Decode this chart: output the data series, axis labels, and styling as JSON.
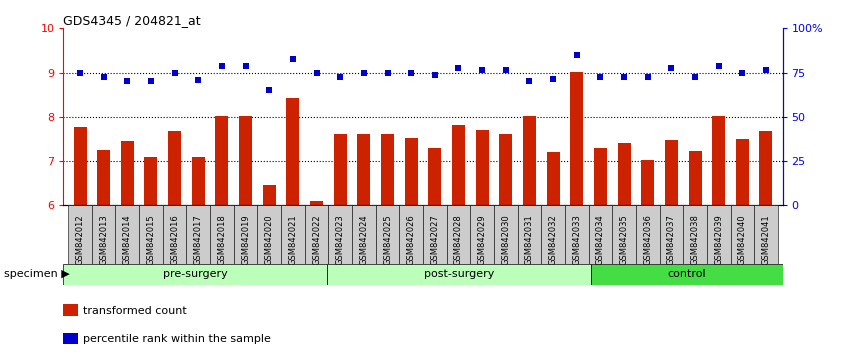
{
  "title": "GDS4345 / 204821_at",
  "categories": [
    "GSM842012",
    "GSM842013",
    "GSM842014",
    "GSM842015",
    "GSM842016",
    "GSM842017",
    "GSM842018",
    "GSM842019",
    "GSM842020",
    "GSM842021",
    "GSM842022",
    "GSM842023",
    "GSM842024",
    "GSM842025",
    "GSM842026",
    "GSM842027",
    "GSM842028",
    "GSM842029",
    "GSM842030",
    "GSM842031",
    "GSM842032",
    "GSM842033",
    "GSM842034",
    "GSM842035",
    "GSM842036",
    "GSM842037",
    "GSM842038",
    "GSM842039",
    "GSM842040",
    "GSM842041"
  ],
  "bar_values": [
    7.78,
    7.25,
    7.45,
    7.1,
    7.68,
    7.1,
    8.02,
    8.02,
    6.47,
    8.42,
    6.1,
    7.62,
    7.62,
    7.62,
    7.52,
    7.3,
    7.82,
    7.7,
    7.62,
    8.02,
    7.2,
    9.02,
    7.3,
    7.4,
    7.02,
    7.48,
    7.22,
    8.02,
    7.5,
    7.68
  ],
  "scatter_values": [
    75.0,
    72.5,
    70.0,
    70.0,
    75.0,
    71.0,
    78.8,
    78.8,
    65.0,
    82.5,
    75.0,
    72.5,
    75.0,
    75.0,
    75.0,
    73.8,
    77.5,
    76.3,
    76.3,
    70.0,
    71.3,
    85.0,
    72.5,
    72.5,
    72.5,
    77.5,
    72.5,
    78.8,
    75.0,
    76.3
  ],
  "bar_color": "#cc2200",
  "scatter_color": "#0000cc",
  "ylim_left": [
    6,
    10
  ],
  "ylim_right": [
    0,
    100
  ],
  "yticks_left": [
    6,
    7,
    8,
    9,
    10
  ],
  "yticks_right": [
    0,
    25,
    50,
    75,
    100
  ],
  "ytick_labels_right": [
    "0",
    "25",
    "50",
    "75",
    "100%"
  ],
  "grid_values": [
    7,
    8,
    9
  ],
  "pre_surgery_indices": [
    0,
    11
  ],
  "post_surgery_indices": [
    11,
    22
  ],
  "control_indices": [
    22,
    30
  ],
  "group_labels": [
    "pre-surgery",
    "post-surgery",
    "control"
  ],
  "light_green": "#bbffbb",
  "dark_green": "#44dd44",
  "specimen_label": "specimen",
  "legend_bar_label": "transformed count",
  "legend_scatter_label": "percentile rank within the sample",
  "tick_bg_color": "#dddddd"
}
